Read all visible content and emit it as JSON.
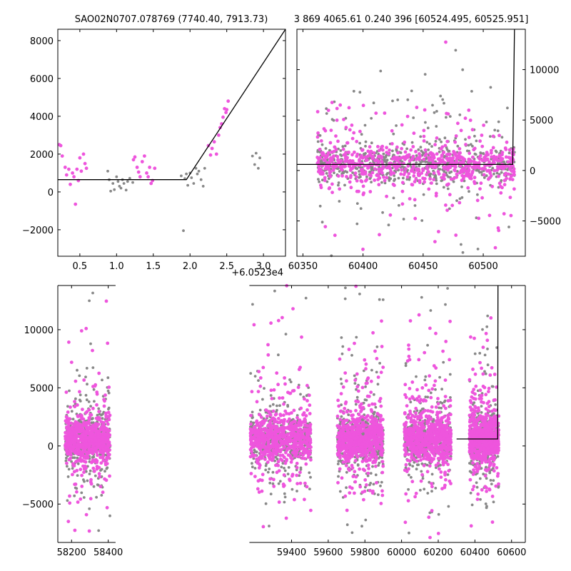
{
  "chart_data": [
    {
      "type": "scatter",
      "title": "SAO02N0707.078769 (7740.40, 7913.73)",
      "x_offset_label": "+6.0523e4",
      "xlim": [
        0.2,
        3.3
      ],
      "ylim": [
        -3400,
        8600
      ],
      "x_ticks": [
        0.5,
        1.0,
        1.5,
        2.0,
        2.5,
        3.0
      ],
      "x_tick_labels": [
        "0.5",
        "1.0",
        "1.5",
        "2.0",
        "2.5",
        "3.0"
      ],
      "y_ticks": [
        -2000,
        0,
        2000,
        4000,
        6000,
        8000
      ],
      "y_tick_labels": [
        "−2000",
        "0",
        "2000",
        "4000",
        "6000",
        "8000"
      ],
      "series": [
        {
          "color": "#ee55dd",
          "points": [
            [
              0.22,
              2500
            ],
            [
              0.24,
              2450
            ],
            [
              0.26,
              1900
            ],
            [
              0.3,
              1300
            ],
            [
              0.32,
              900
            ],
            [
              0.35,
              1200
            ],
            [
              0.37,
              400
            ],
            [
              0.4,
              1000
            ],
            [
              0.42,
              800
            ],
            [
              0.44,
              -650
            ],
            [
              0.46,
              1200
            ],
            [
              0.48,
              600
            ],
            [
              0.5,
              1800
            ],
            [
              0.52,
              1100
            ],
            [
              0.55,
              2000
            ],
            [
              0.57,
              1500
            ],
            [
              0.59,
              1250
            ],
            [
              1.23,
              1700
            ],
            [
              1.25,
              1850
            ],
            [
              1.28,
              1300
            ],
            [
              1.3,
              1050
            ],
            [
              1.32,
              800
            ],
            [
              1.35,
              1600
            ],
            [
              1.38,
              1900
            ],
            [
              1.41,
              1000
            ],
            [
              1.43,
              800
            ],
            [
              1.45,
              1300
            ],
            [
              1.47,
              450
            ],
            [
              1.49,
              600
            ],
            [
              1.52,
              1250
            ],
            [
              2.25,
              2450
            ],
            [
              2.28,
              1950
            ],
            [
              2.3,
              2300
            ],
            [
              2.33,
              2650
            ],
            [
              2.36,
              2000
            ],
            [
              2.39,
              3000
            ],
            [
              2.41,
              3400
            ],
            [
              2.43,
              3600
            ],
            [
              2.45,
              3950
            ],
            [
              2.47,
              4400
            ],
            [
              2.49,
              4200
            ],
            [
              2.5,
              4350
            ],
            [
              2.52,
              4800
            ]
          ]
        },
        {
          "color": "#888888",
          "points": [
            [
              0.88,
              1100
            ],
            [
              0.9,
              650
            ],
            [
              0.92,
              40
            ],
            [
              0.95,
              450
            ],
            [
              0.97,
              120
            ],
            [
              1.0,
              800
            ],
            [
              1.02,
              550
            ],
            [
              1.04,
              300
            ],
            [
              1.06,
              200
            ],
            [
              1.08,
              650
            ],
            [
              1.1,
              450
            ],
            [
              1.13,
              100
            ],
            [
              1.15,
              550
            ],
            [
              1.18,
              720
            ],
            [
              1.22,
              500
            ],
            [
              1.88,
              850
            ],
            [
              1.91,
              -2050
            ],
            [
              1.93,
              700
            ],
            [
              1.95,
              950
            ],
            [
              1.97,
              350
            ],
            [
              2.0,
              1000
            ],
            [
              2.02,
              750
            ],
            [
              2.05,
              450
            ],
            [
              2.08,
              1250
            ],
            [
              2.1,
              950
            ],
            [
              2.12,
              1100
            ],
            [
              2.15,
              650
            ],
            [
              2.18,
              300
            ],
            [
              2.2,
              1250
            ],
            [
              2.85,
              1900
            ],
            [
              2.88,
              1450
            ],
            [
              2.9,
              2050
            ],
            [
              2.93,
              1250
            ],
            [
              2.95,
              1800
            ]
          ]
        }
      ],
      "model_line": [
        [
          0.2,
          650
        ],
        [
          1.95,
          650
        ],
        [
          3.3,
          8600
        ]
      ]
    },
    {
      "type": "scatter",
      "title": "3 869 4065.61 0.240 396 [60524.495, 60525.951]",
      "xlim": [
        60345,
        60535
      ],
      "ylim": [
        -8500,
        14000
      ],
      "x_ticks": [
        60350,
        60400,
        60450,
        60500
      ],
      "x_tick_labels": [
        "60350",
        "60400",
        "60450",
        "60500"
      ],
      "y_ticks": [
        -5000,
        0,
        5000,
        10000
      ],
      "y_tick_labels": [
        "−5000",
        "0",
        "5000",
        "10000"
      ],
      "y_axis_side": "right",
      "series": [
        {
          "color": "#888888",
          "points_generated": "dense_scatter",
          "season_ranges": [
            [
              60362,
              60526
            ]
          ],
          "n": 700,
          "seed": 11
        },
        {
          "color": "#ee55dd",
          "points_generated": "dense_scatter",
          "season_ranges": [
            [
              60362,
              60526
            ]
          ],
          "n": 700,
          "seed": 23
        }
      ],
      "model_line": [
        [
          60345,
          600
        ],
        [
          60524.5,
          600
        ],
        [
          60526,
          14000
        ]
      ]
    },
    {
      "type": "scatter",
      "xlim": [
        58125,
        60675
      ],
      "ylim": [
        -8300,
        13800
      ],
      "x_ticks": [
        58200,
        58400,
        59400,
        59600,
        59800,
        60000,
        60200,
        60400,
        60600
      ],
      "x_tick_labels": [
        "58200",
        "58400",
        "59400",
        "59600",
        "59800",
        "60000",
        "60200",
        "60400",
        "60600"
      ],
      "y_ticks": [
        -5000,
        0,
        5000,
        10000
      ],
      "y_tick_labels": [
        "−5000",
        "0",
        "5000",
        "10000"
      ],
      "broken_axis_gap": [
        58440,
        59170
      ],
      "series": [
        {
          "color": "#888888",
          "points_generated": "dense_scatter",
          "season_ranges": [
            [
              58165,
              58410
            ],
            [
              59175,
              59505
            ],
            [
              59650,
              59900
            ],
            [
              60015,
              60270
            ],
            [
              60370,
              60530
            ]
          ],
          "n": 2600,
          "seed": 5
        },
        {
          "color": "#ee55dd",
          "points_generated": "dense_scatter",
          "season_ranges": [
            [
              58165,
              58410
            ],
            [
              59175,
              59505
            ],
            [
              59650,
              59900
            ],
            [
              60015,
              60270
            ],
            [
              60370,
              60530
            ]
          ],
          "n": 3400,
          "seed": 17
        }
      ],
      "model_line": [
        [
          60300,
          600
        ],
        [
          60524.5,
          600
        ],
        [
          60526,
          13800
        ]
      ]
    }
  ]
}
